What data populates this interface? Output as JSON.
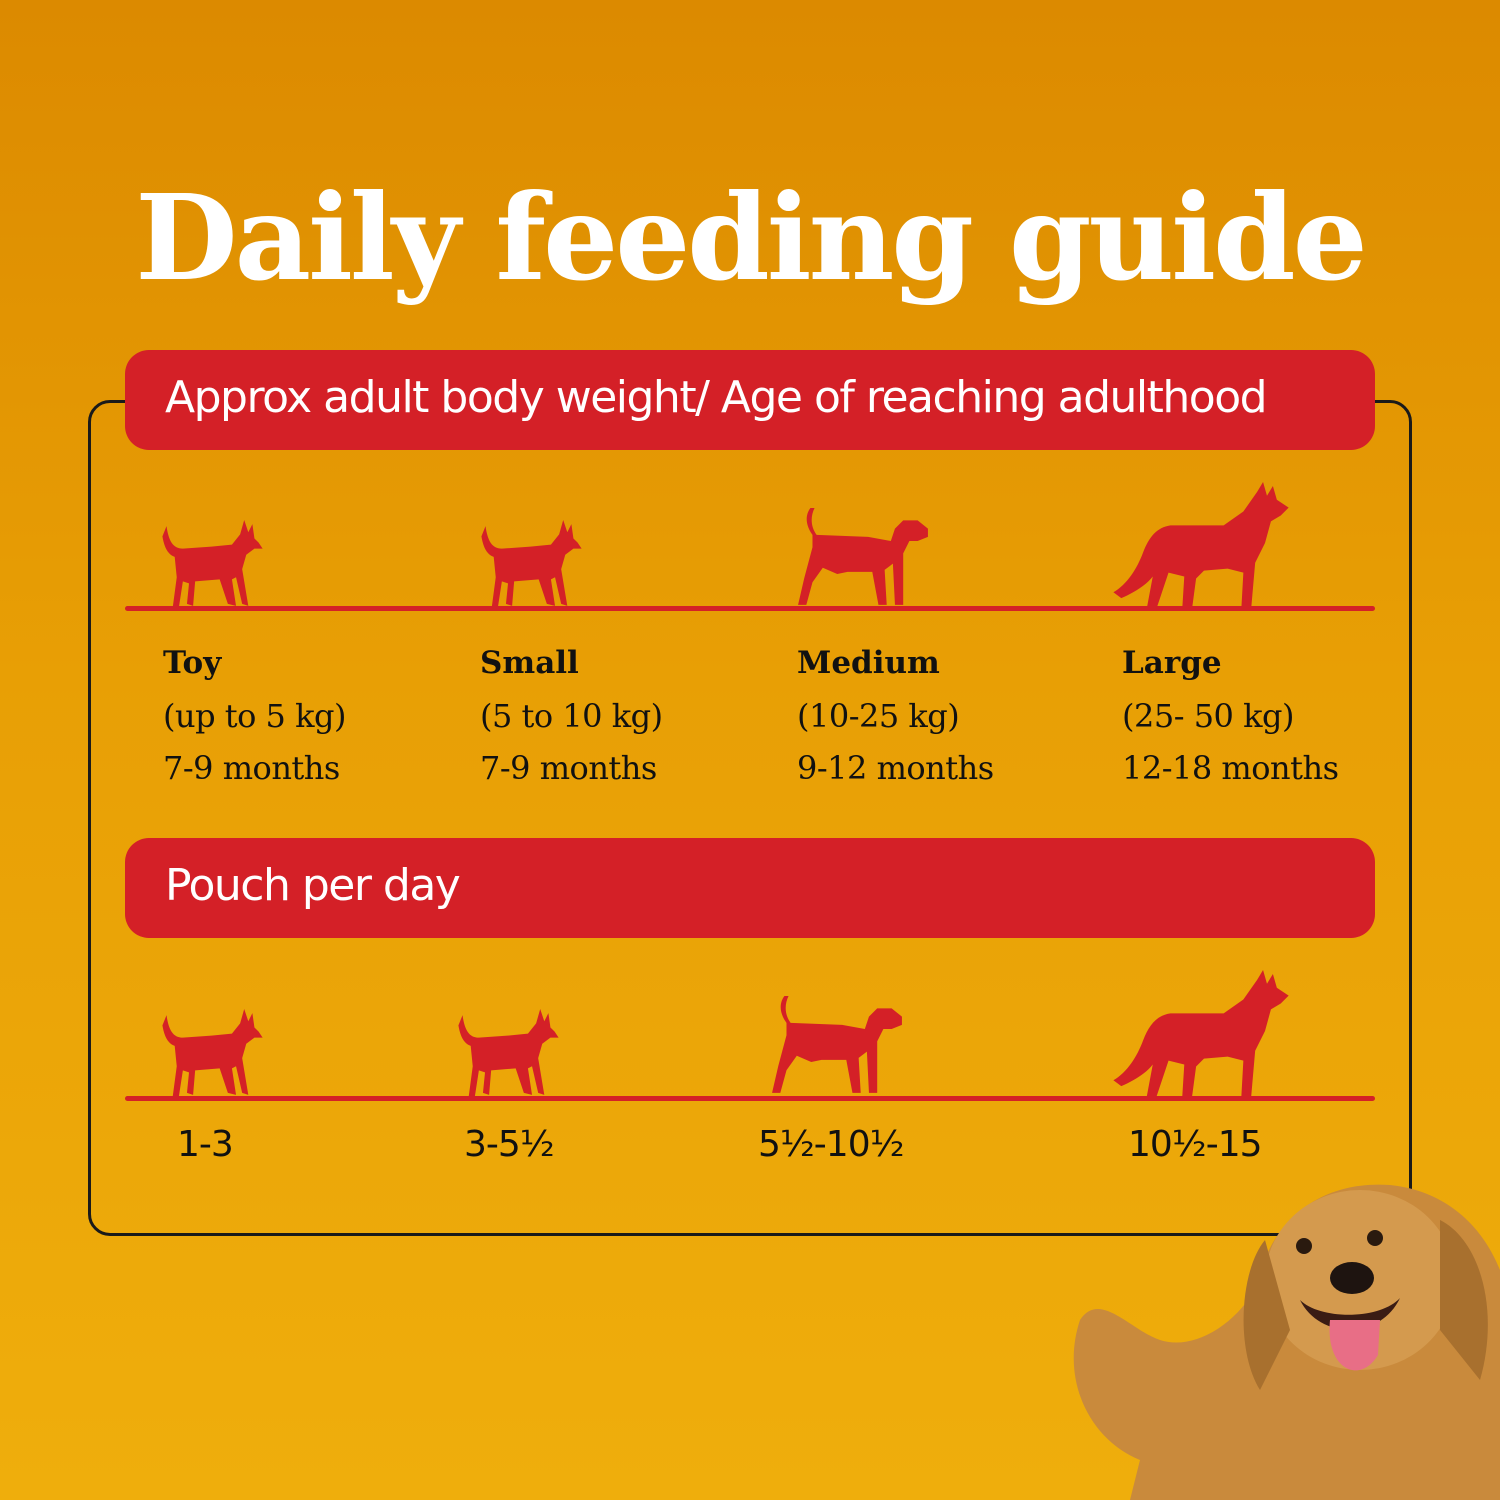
{
  "title": "Daily feeding guide",
  "section1": {
    "heading": "Approx adult body weight/ Age of reaching adulthood"
  },
  "sizes": [
    {
      "name": "Toy",
      "weight": "(up to 5 kg)",
      "age": "7-9 months",
      "icon": "toy-dog-icon"
    },
    {
      "name": "Small",
      "weight": "(5 to 10 kg)",
      "age": "7-9 months",
      "icon": "small-dog-icon"
    },
    {
      "name": "Medium",
      "weight": "(10-25 kg)",
      "age": "9-12 months",
      "icon": "medium-dog-icon"
    },
    {
      "name": "Large",
      "weight": "(25- 50 kg)",
      "age": "12-18 months",
      "icon": "large-dog-icon"
    }
  ],
  "section2": {
    "heading": "Pouch per day"
  },
  "pouches": [
    "1-3",
    "3-5½",
    "5½-10½",
    "10½-15"
  ],
  "colors": {
    "background": "#e89f05",
    "accent": "#d42027",
    "text": "#111111"
  }
}
